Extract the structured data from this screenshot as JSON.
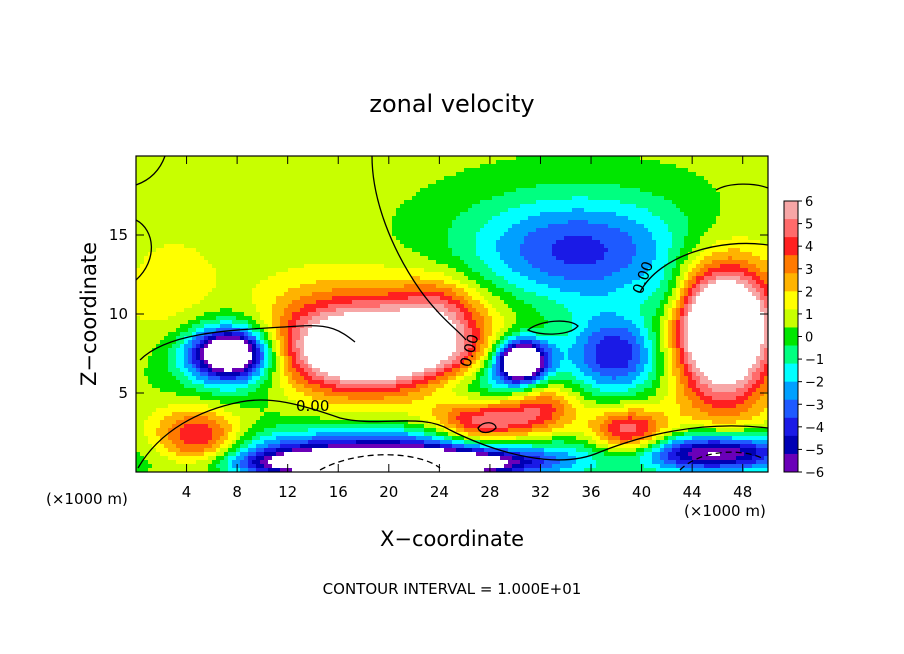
{
  "chart_data": {
    "type": "heatmap",
    "title": "zonal velocity",
    "xlabel": "X−coordinate",
    "ylabel": "Z−coordinate",
    "x_unit_left": "(×1000 m)",
    "x_unit_right": "(×1000 m)",
    "footer": "CONTOUR INTERVAL = 1.000E+01",
    "xlim": [
      0,
      50
    ],
    "ylim": [
      0,
      20
    ],
    "xticks": [
      4,
      8,
      12,
      16,
      20,
      24,
      28,
      32,
      36,
      40,
      44,
      48
    ],
    "yticks": [
      5,
      10,
      15
    ],
    "colorbar": {
      "labels": [
        6,
        5,
        4,
        3,
        2,
        1,
        0,
        -1,
        -2,
        -3,
        -4,
        -5,
        -6
      ],
      "colors": [
        "#f7a6a6",
        "#ff6b6b",
        "#ff2020",
        "#ff7a00",
        "#ffb300",
        "#ffff00",
        "#c8ff00",
        "#00e600",
        "#00ff80",
        "#00ffff",
        "#00a0ff",
        "#1e5aff",
        "#1a1ae6",
        "#0000b4",
        "#6a00b8"
      ]
    },
    "contour_label": "0.00",
    "saturation_color": "#ffffff",
    "field_blobs": [
      {
        "x": 35,
        "y": 14,
        "rx": 9,
        "ry": 3.5,
        "u": -4.5
      },
      {
        "x": 38,
        "y": 7.5,
        "rx": 4,
        "ry": 2.5,
        "u": -5
      },
      {
        "x": 7.5,
        "y": 7.5,
        "rx": 5,
        "ry": 3,
        "u": -3.5
      },
      {
        "x": 30.5,
        "y": 7,
        "rx": 3,
        "ry": 2,
        "u": -4
      },
      {
        "x": 18,
        "y": 9.5,
        "rx": 10,
        "ry": 3,
        "u": 3
      },
      {
        "x": 19,
        "y": 7.5,
        "rx": 8,
        "ry": 2.5,
        "u": 8
      },
      {
        "x": 7.5,
        "y": 7.5,
        "rx": 3,
        "ry": 1.5,
        "u": -8
      },
      {
        "x": 30.5,
        "y": 7,
        "rx": 1.8,
        "ry": 1.2,
        "u": -8
      },
      {
        "x": 46.5,
        "y": 8.5,
        "rx": 3.8,
        "ry": 4.5,
        "u": 8
      },
      {
        "x": 46,
        "y": 10,
        "rx": 5,
        "ry": 3,
        "u": 3
      },
      {
        "x": 27.5,
        "y": 3,
        "rx": 4,
        "ry": 1.5,
        "u": 5
      },
      {
        "x": 39,
        "y": 2.5,
        "rx": 3,
        "ry": 1.5,
        "u": 5
      },
      {
        "x": 5,
        "y": 2,
        "rx": 3.5,
        "ry": 2,
        "u": 5
      },
      {
        "x": 20,
        "y": 1.2,
        "rx": 14,
        "ry": 1.5,
        "u": -6
      },
      {
        "x": 20,
        "y": 0.5,
        "rx": 10,
        "ry": 0.8,
        "u": -9
      },
      {
        "x": 46,
        "y": 1.2,
        "rx": 6,
        "ry": 1.2,
        "u": -7
      },
      {
        "x": 28,
        "y": 5.5,
        "rx": 6,
        "ry": 1.5,
        "u": -2.5
      },
      {
        "x": 32,
        "y": 4.5,
        "rx": 3,
        "ry": 2,
        "u": 4
      },
      {
        "x": 3,
        "y": 11,
        "rx": 4,
        "ry": 4,
        "u": 1.2
      },
      {
        "x": 24,
        "y": 10.5,
        "rx": 3,
        "ry": 2,
        "u": 2
      },
      {
        "x": 42,
        "y": 11,
        "rx": 2,
        "ry": 2,
        "u": -2
      },
      {
        "x": 33,
        "y": 9,
        "rx": 3,
        "ry": 0.6,
        "u": 0.3
      }
    ]
  }
}
